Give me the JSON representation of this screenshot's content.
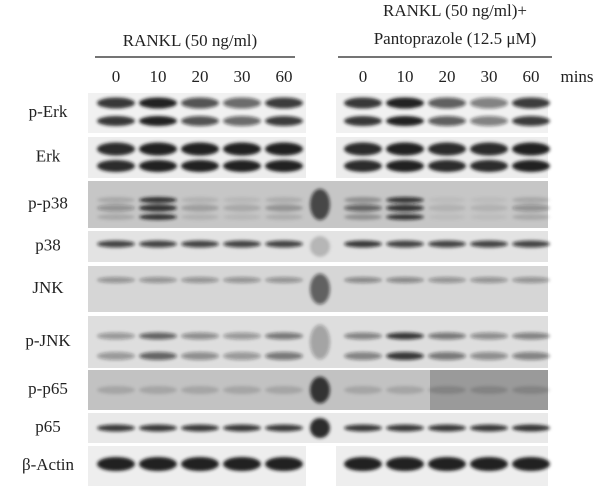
{
  "header": {
    "groups": [
      {
        "label_lines": [
          "RANKL (50 ng/ml)"
        ],
        "lanes": [
          0,
          10,
          20,
          30,
          60
        ]
      },
      {
        "label_lines": [
          "RANKL (50 ng/ml)+",
          "Pantoprazole (12.5 μM)"
        ],
        "lanes": [
          0,
          10,
          20,
          30,
          60
        ]
      }
    ],
    "unit": "mins"
  },
  "rows": [
    "p-Erk",
    "Erk",
    "p-p38",
    "p38",
    "JNK",
    "p-JNK",
    "p-p65",
    "p65",
    "β-Actin"
  ]
}
